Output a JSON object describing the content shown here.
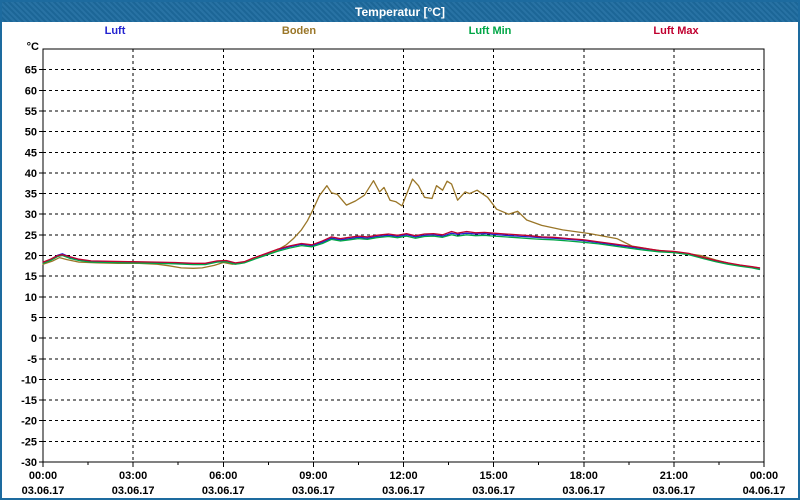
{
  "window": {
    "title": "Temperatur [°C]"
  },
  "legend": {
    "items": [
      {
        "label": "Luft",
        "color": "#2323d0"
      },
      {
        "label": "Boden",
        "color": "#9a7628"
      },
      {
        "label": "Luft Min",
        "color": "#00a646"
      },
      {
        "label": "Luft Max",
        "color": "#c00030"
      }
    ]
  },
  "chart_data": {
    "type": "line",
    "title": "Temperatur [°C]",
    "y_unit_label": "°C",
    "grid": "dashed",
    "legend_position": "top",
    "xmin": 0,
    "xmax": 24,
    "ymin": -30,
    "ymax": 70,
    "y_ticks": [
      65,
      60,
      55,
      50,
      45,
      40,
      35,
      30,
      25,
      20,
      15,
      10,
      5,
      0,
      -5,
      -10,
      -15,
      -20,
      -25,
      -30
    ],
    "x_minor_step": 1.5,
    "x_major_ticks": [
      {
        "t": 0,
        "time": "00:00",
        "date": "03.06.17"
      },
      {
        "t": 3,
        "time": "03:00",
        "date": "03.06.17"
      },
      {
        "t": 6,
        "time": "06:00",
        "date": "03.06.17"
      },
      {
        "t": 9,
        "time": "09:00",
        "date": "03.06.17"
      },
      {
        "t": 12,
        "time": "12:00",
        "date": "03.06.17"
      },
      {
        "t": 15,
        "time": "15:00",
        "date": "03.06.17"
      },
      {
        "t": 18,
        "time": "18:00",
        "date": "03.06.17"
      },
      {
        "t": 21,
        "time": "21:00",
        "date": "03.06.17"
      },
      {
        "t": 24,
        "time": "00:00",
        "date": "04.06.17"
      }
    ],
    "series": [
      {
        "name": "Luft",
        "color": "#2323d0",
        "points": [
          [
            0,
            18.3
          ],
          [
            0.25,
            19.0
          ],
          [
            0.5,
            20.1
          ],
          [
            0.65,
            20.4
          ],
          [
            0.9,
            19.6
          ],
          [
            1.2,
            19.0
          ],
          [
            1.6,
            18.6
          ],
          [
            2.2,
            18.5
          ],
          [
            3,
            18.4
          ],
          [
            3.8,
            18.3
          ],
          [
            4.4,
            18.2
          ],
          [
            5,
            18.0
          ],
          [
            5.4,
            18.0
          ],
          [
            5.8,
            18.6
          ],
          [
            6.1,
            18.7
          ],
          [
            6.4,
            18.1
          ],
          [
            6.7,
            18.4
          ],
          [
            7,
            19.2
          ],
          [
            7.4,
            20.2
          ],
          [
            7.8,
            21.3
          ],
          [
            8.2,
            22.1
          ],
          [
            8.6,
            22.7
          ],
          [
            8.95,
            22.4
          ],
          [
            9.3,
            23.2
          ],
          [
            9.6,
            24.2
          ],
          [
            9.9,
            23.8
          ],
          [
            10.2,
            24.1
          ],
          [
            10.5,
            24.4
          ],
          [
            10.8,
            24.2
          ],
          [
            11.1,
            24.6
          ],
          [
            11.5,
            24.9
          ],
          [
            11.8,
            24.6
          ],
          [
            12.1,
            25.0
          ],
          [
            12.4,
            24.5
          ],
          [
            12.7,
            24.9
          ],
          [
            13,
            25.0
          ],
          [
            13.3,
            24.7
          ],
          [
            13.6,
            25.4
          ],
          [
            13.8,
            25.1
          ],
          [
            14.1,
            25.4
          ],
          [
            14.4,
            25.2
          ],
          [
            14.7,
            25.3
          ],
          [
            15,
            25.1
          ],
          [
            15.4,
            24.9
          ],
          [
            15.8,
            24.7
          ],
          [
            16.2,
            24.5
          ],
          [
            16.6,
            24.3
          ],
          [
            17,
            24.2
          ],
          [
            17.5,
            23.9
          ],
          [
            18,
            23.6
          ],
          [
            18.5,
            23.1
          ],
          [
            19,
            22.6
          ],
          [
            19.5,
            22.1
          ],
          [
            20,
            21.6
          ],
          [
            20.5,
            21.1
          ],
          [
            21,
            20.9
          ],
          [
            21.5,
            20.4
          ],
          [
            22,
            19.4
          ],
          [
            22.4,
            18.7
          ],
          [
            22.8,
            18.1
          ],
          [
            23.2,
            17.6
          ],
          [
            23.6,
            17.2
          ],
          [
            23.85,
            16.9
          ]
        ]
      },
      {
        "name": "Boden",
        "color": "#9a7628",
        "points": [
          [
            0,
            17.9
          ],
          [
            0.3,
            18.6
          ],
          [
            0.55,
            19.5
          ],
          [
            0.8,
            19.0
          ],
          [
            1.2,
            18.4
          ],
          [
            1.8,
            18.2
          ],
          [
            2.5,
            18.1
          ],
          [
            3.2,
            18.1
          ],
          [
            3.8,
            17.9
          ],
          [
            4.2,
            17.5
          ],
          [
            4.6,
            17.0
          ],
          [
            5,
            16.9
          ],
          [
            5.3,
            17.0
          ],
          [
            5.7,
            17.6
          ],
          [
            6,
            18.3
          ],
          [
            6.3,
            17.9
          ],
          [
            6.6,
            18.1
          ],
          [
            6.9,
            18.9
          ],
          [
            7.2,
            19.6
          ],
          [
            7.5,
            20.3
          ],
          [
            7.8,
            21.3
          ],
          [
            8.1,
            22.6
          ],
          [
            8.35,
            24.2
          ],
          [
            8.6,
            26.2
          ],
          [
            8.8,
            28.4
          ],
          [
            9,
            31.3
          ],
          [
            9.2,
            34.5
          ],
          [
            9.45,
            36.9
          ],
          [
            9.6,
            35.2
          ],
          [
            9.8,
            34.8
          ],
          [
            10.1,
            32.2
          ],
          [
            10.4,
            33.2
          ],
          [
            10.7,
            34.6
          ],
          [
            11,
            38.1
          ],
          [
            11.2,
            35.4
          ],
          [
            11.35,
            36.5
          ],
          [
            11.55,
            33.4
          ],
          [
            11.75,
            33.0
          ],
          [
            11.95,
            32.0
          ],
          [
            12.3,
            38.5
          ],
          [
            12.5,
            36.9
          ],
          [
            12.7,
            34.1
          ],
          [
            12.95,
            33.8
          ],
          [
            13.1,
            36.9
          ],
          [
            13.3,
            35.8
          ],
          [
            13.45,
            38.0
          ],
          [
            13.6,
            37.3
          ],
          [
            13.8,
            33.4
          ],
          [
            14.05,
            35.4
          ],
          [
            14.2,
            35.0
          ],
          [
            14.45,
            35.8
          ],
          [
            14.8,
            34.1
          ],
          [
            15.1,
            31.2
          ],
          [
            15.5,
            30.0
          ],
          [
            15.8,
            30.7
          ],
          [
            16.1,
            28.6
          ],
          [
            16.6,
            27.3
          ],
          [
            17.3,
            26.2
          ],
          [
            18.2,
            25.3
          ],
          [
            19.1,
            24.1
          ],
          [
            19.6,
            22.3
          ],
          [
            20.3,
            21.4
          ],
          [
            20.8,
            21.0
          ],
          [
            21.3,
            20.6
          ],
          [
            21.9,
            20.0
          ],
          [
            22.4,
            18.9
          ],
          [
            22.9,
            18.0
          ],
          [
            23.4,
            17.4
          ],
          [
            23.85,
            17.0
          ]
        ]
      },
      {
        "name": "Luft Min",
        "color": "#00a646",
        "points": [
          [
            0,
            18.1
          ],
          [
            0.25,
            18.8
          ],
          [
            0.5,
            19.8
          ],
          [
            0.65,
            20.0
          ],
          [
            0.9,
            19.3
          ],
          [
            1.2,
            18.8
          ],
          [
            1.6,
            18.4
          ],
          [
            2.2,
            18.3
          ],
          [
            3,
            18.2
          ],
          [
            3.8,
            18.1
          ],
          [
            4.4,
            18.0
          ],
          [
            5,
            17.8
          ],
          [
            5.4,
            17.8
          ],
          [
            5.8,
            18.4
          ],
          [
            6.1,
            18.5
          ],
          [
            6.4,
            17.9
          ],
          [
            6.7,
            18.2
          ],
          [
            7,
            19.0
          ],
          [
            7.4,
            20.0
          ],
          [
            7.8,
            21.0
          ],
          [
            8.2,
            21.8
          ],
          [
            8.6,
            22.4
          ],
          [
            8.95,
            22.1
          ],
          [
            9.3,
            22.9
          ],
          [
            9.6,
            23.9
          ],
          [
            9.9,
            23.5
          ],
          [
            10.2,
            23.8
          ],
          [
            10.5,
            24.1
          ],
          [
            10.8,
            23.9
          ],
          [
            11.1,
            24.3
          ],
          [
            11.5,
            24.6
          ],
          [
            11.8,
            24.3
          ],
          [
            12.1,
            24.7
          ],
          [
            12.4,
            24.2
          ],
          [
            12.7,
            24.6
          ],
          [
            13,
            24.7
          ],
          [
            13.3,
            24.4
          ],
          [
            13.6,
            25.0
          ],
          [
            13.8,
            24.7
          ],
          [
            14.1,
            25.0
          ],
          [
            14.4,
            24.8
          ],
          [
            14.7,
            24.9
          ],
          [
            15,
            24.7
          ],
          [
            15.4,
            24.5
          ],
          [
            15.8,
            24.3
          ],
          [
            16.2,
            24.1
          ],
          [
            16.6,
            23.9
          ],
          [
            17,
            23.8
          ],
          [
            17.5,
            23.5
          ],
          [
            18,
            23.2
          ],
          [
            18.5,
            22.8
          ],
          [
            19,
            22.3
          ],
          [
            19.5,
            21.8
          ],
          [
            20,
            21.3
          ],
          [
            20.5,
            20.9
          ],
          [
            21,
            20.7
          ],
          [
            21.5,
            20.2
          ],
          [
            22,
            19.2
          ],
          [
            22.4,
            18.5
          ],
          [
            22.8,
            17.9
          ],
          [
            23.2,
            17.4
          ],
          [
            23.6,
            17.0
          ],
          [
            23.85,
            16.6
          ]
        ]
      },
      {
        "name": "Luft Max",
        "color": "#c00030",
        "points": [
          [
            0,
            18.4
          ],
          [
            0.25,
            19.1
          ],
          [
            0.5,
            20.0
          ],
          [
            0.65,
            20.2
          ],
          [
            0.9,
            19.7
          ],
          [
            1.2,
            19.1
          ],
          [
            1.6,
            18.7
          ],
          [
            2.2,
            18.6
          ],
          [
            3,
            18.5
          ],
          [
            3.8,
            18.4
          ],
          [
            4.4,
            18.3
          ],
          [
            5,
            18.1
          ],
          [
            5.4,
            18.1
          ],
          [
            5.8,
            18.7
          ],
          [
            6.1,
            18.8
          ],
          [
            6.4,
            18.2
          ],
          [
            6.7,
            18.5
          ],
          [
            7,
            19.4
          ],
          [
            7.4,
            20.4
          ],
          [
            7.8,
            21.5
          ],
          [
            8.2,
            22.3
          ],
          [
            8.6,
            22.9
          ],
          [
            8.95,
            22.6
          ],
          [
            9.3,
            23.5
          ],
          [
            9.6,
            24.5
          ],
          [
            9.9,
            24.1
          ],
          [
            10.2,
            24.4
          ],
          [
            10.5,
            24.7
          ],
          [
            10.8,
            24.5
          ],
          [
            11.1,
            24.9
          ],
          [
            11.5,
            25.2
          ],
          [
            11.8,
            24.9
          ],
          [
            12.1,
            25.3
          ],
          [
            12.4,
            24.8
          ],
          [
            12.7,
            25.2
          ],
          [
            13,
            25.3
          ],
          [
            13.3,
            25.0
          ],
          [
            13.6,
            25.8
          ],
          [
            13.8,
            25.4
          ],
          [
            14.1,
            25.8
          ],
          [
            14.4,
            25.5
          ],
          [
            14.7,
            25.6
          ],
          [
            15,
            25.4
          ],
          [
            15.4,
            25.2
          ],
          [
            15.8,
            25.0
          ],
          [
            16.2,
            24.8
          ],
          [
            16.6,
            24.5
          ],
          [
            17,
            24.4
          ],
          [
            17.5,
            24.1
          ],
          [
            18,
            23.8
          ],
          [
            18.5,
            23.3
          ],
          [
            19,
            22.8
          ],
          [
            19.5,
            22.3
          ],
          [
            20,
            21.8
          ],
          [
            20.5,
            21.2
          ],
          [
            21,
            21.0
          ],
          [
            21.5,
            20.5
          ],
          [
            22,
            19.5
          ],
          [
            22.4,
            18.8
          ],
          [
            22.8,
            18.2
          ],
          [
            23.2,
            17.7
          ],
          [
            23.6,
            17.3
          ],
          [
            23.85,
            17.0
          ]
        ]
      }
    ]
  }
}
